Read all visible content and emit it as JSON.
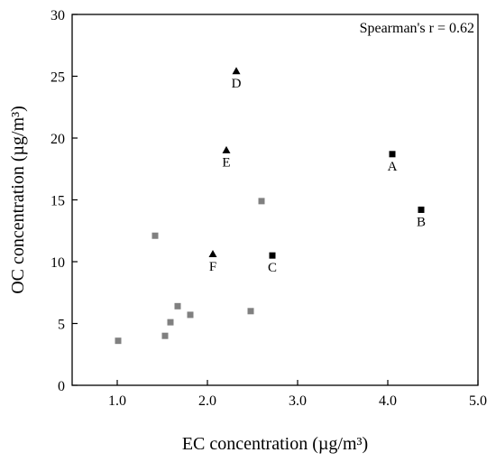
{
  "chart_data": {
    "type": "scatter",
    "xlabel": "EC concentration (µg/m³)",
    "ylabel": "OC concentration (µg/m³)",
    "xlim": [
      0.5,
      5.0
    ],
    "ylim": [
      0,
      30
    ],
    "x_ticks": [
      "1.0",
      "2.0",
      "3.0",
      "4.0",
      "5.0"
    ],
    "y_ticks": [
      "0",
      "5",
      "10",
      "15",
      "20",
      "25",
      "30"
    ],
    "x_tick_values": [
      1.0,
      2.0,
      3.0,
      4.0,
      5.0
    ],
    "y_tick_values": [
      0,
      5,
      10,
      15,
      20,
      25,
      30
    ],
    "grid": false,
    "annotation": "Spearman's r = 0.62",
    "series": [
      {
        "marker": "square",
        "color": "#808080",
        "points": [
          {
            "x": 1.01,
            "y": 3.6
          },
          {
            "x": 1.42,
            "y": 12.1
          },
          {
            "x": 1.53,
            "y": 4.0
          },
          {
            "x": 1.59,
            "y": 5.1
          },
          {
            "x": 1.67,
            "y": 6.4
          },
          {
            "x": 1.81,
            "y": 5.7
          },
          {
            "x": 2.48,
            "y": 6.0
          },
          {
            "x": 2.6,
            "y": 14.9
          }
        ]
      },
      {
        "marker": "square",
        "color": "#000000",
        "points": [
          {
            "x": 4.05,
            "y": 18.7,
            "label": "A"
          },
          {
            "x": 4.37,
            "y": 14.2,
            "label": "B"
          },
          {
            "x": 2.72,
            "y": 10.5,
            "label": "C"
          }
        ]
      },
      {
        "marker": "triangle",
        "color": "#000000",
        "points": [
          {
            "x": 2.32,
            "y": 25.4,
            "label": "D"
          },
          {
            "x": 2.21,
            "y": 19.0,
            "label": "E"
          },
          {
            "x": 2.06,
            "y": 10.6,
            "label": "F"
          }
        ]
      }
    ]
  }
}
